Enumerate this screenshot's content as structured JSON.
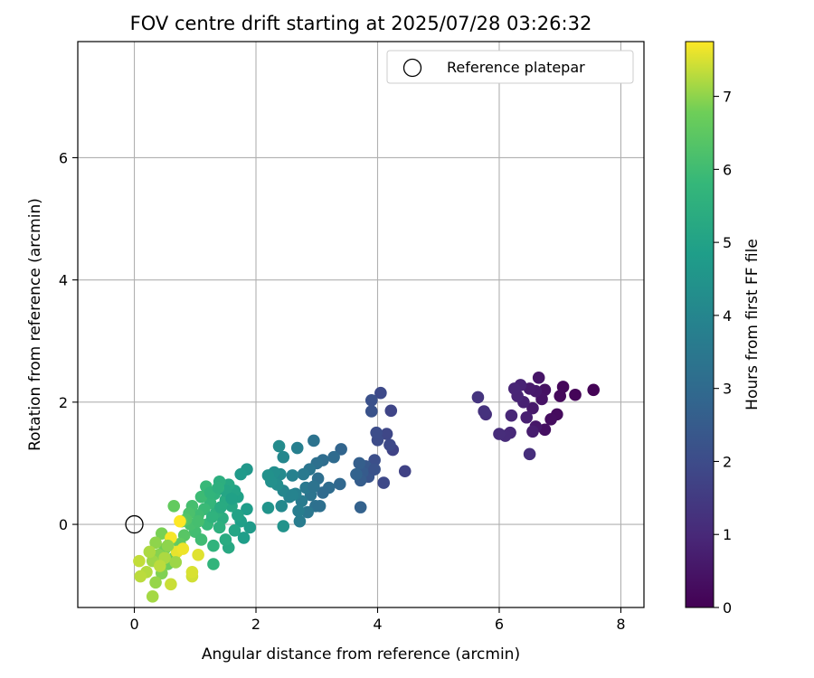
{
  "chart_data": {
    "type": "scatter",
    "title": "FOV centre drift starting at 2025/07/28 03:26:32",
    "xlabel": "Angular distance from reference (arcmin)",
    "ylabel": "Rotation from reference (arcmin)",
    "xlim": [
      -0.93,
      8.38
    ],
    "ylim": [
      -1.36,
      7.9
    ],
    "xticks": [
      0,
      2,
      4,
      6,
      8
    ],
    "yticks": [
      0,
      2,
      4,
      6
    ],
    "grid": true,
    "legend": {
      "placement": "top-right",
      "entries": [
        "Reference platepar"
      ]
    },
    "colorbar": {
      "label": "Hours from first FF file",
      "range": [
        0,
        7.75
      ],
      "ticks": [
        0,
        1,
        2,
        3,
        4,
        5,
        6,
        7
      ],
      "colormap": "viridis"
    },
    "reference_point": {
      "x": 0,
      "y": 0,
      "label": "Reference platepar"
    },
    "points": [
      {
        "x": 7.55,
        "y": 2.2,
        "t": 0.05
      },
      {
        "x": 7.25,
        "y": 2.12,
        "t": 0.1
      },
      {
        "x": 7.05,
        "y": 2.25,
        "t": 0.15
      },
      {
        "x": 7.0,
        "y": 2.1,
        "t": 0.2
      },
      {
        "x": 6.95,
        "y": 1.8,
        "t": 0.25
      },
      {
        "x": 6.85,
        "y": 1.72,
        "t": 0.3
      },
      {
        "x": 6.75,
        "y": 1.55,
        "t": 0.35
      },
      {
        "x": 6.75,
        "y": 2.2,
        "t": 0.4
      },
      {
        "x": 6.7,
        "y": 2.05,
        "t": 0.45
      },
      {
        "x": 6.65,
        "y": 2.4,
        "t": 0.5
      },
      {
        "x": 6.6,
        "y": 1.6,
        "t": 0.55
      },
      {
        "x": 6.6,
        "y": 2.18,
        "t": 0.6
      },
      {
        "x": 6.55,
        "y": 1.9,
        "t": 0.62
      },
      {
        "x": 6.5,
        "y": 2.22,
        "t": 0.65
      },
      {
        "x": 6.55,
        "y": 1.52,
        "t": 0.7
      },
      {
        "x": 6.45,
        "y": 1.75,
        "t": 0.75
      },
      {
        "x": 6.4,
        "y": 2.0,
        "t": 0.8
      },
      {
        "x": 6.35,
        "y": 2.28,
        "t": 0.85
      },
      {
        "x": 6.3,
        "y": 2.1,
        "t": 0.9
      },
      {
        "x": 6.25,
        "y": 2.22,
        "t": 0.92
      },
      {
        "x": 6.2,
        "y": 1.78,
        "t": 0.95
      },
      {
        "x": 6.18,
        "y": 1.5,
        "t": 1.0
      },
      {
        "x": 6.1,
        "y": 1.45,
        "t": 1.05
      },
      {
        "x": 6.0,
        "y": 1.48,
        "t": 1.1
      },
      {
        "x": 6.5,
        "y": 1.15,
        "t": 1.15
      },
      {
        "x": 5.78,
        "y": 1.8,
        "t": 1.2
      },
      {
        "x": 5.75,
        "y": 1.85,
        "t": 1.25
      },
      {
        "x": 5.65,
        "y": 2.08,
        "t": 1.3
      },
      {
        "x": 4.45,
        "y": 0.87,
        "t": 1.7
      },
      {
        "x": 4.25,
        "y": 1.22,
        "t": 1.75
      },
      {
        "x": 4.22,
        "y": 1.86,
        "t": 1.8
      },
      {
        "x": 4.15,
        "y": 1.48,
        "t": 1.85
      },
      {
        "x": 4.1,
        "y": 0.68,
        "t": 1.9
      },
      {
        "x": 4.05,
        "y": 2.15,
        "t": 1.95
      },
      {
        "x": 4.0,
        "y": 1.38,
        "t": 2.0
      },
      {
        "x": 3.98,
        "y": 1.5,
        "t": 2.05
      },
      {
        "x": 3.95,
        "y": 1.05,
        "t": 2.1
      },
      {
        "x": 3.9,
        "y": 2.03,
        "t": 2.15
      },
      {
        "x": 3.9,
        "y": 1.85,
        "t": 2.2
      },
      {
        "x": 3.85,
        "y": 0.78,
        "t": 2.3
      },
      {
        "x": 3.8,
        "y": 0.95,
        "t": 2.4
      },
      {
        "x": 3.75,
        "y": 0.85,
        "t": 2.5
      },
      {
        "x": 3.72,
        "y": 0.72,
        "t": 2.55
      },
      {
        "x": 3.7,
        "y": 1.0,
        "t": 2.6
      },
      {
        "x": 3.72,
        "y": 0.28,
        "t": 2.7
      },
      {
        "x": 3.65,
        "y": 0.82,
        "t": 2.75
      },
      {
        "x": 4.2,
        "y": 1.3,
        "t": 1.9
      },
      {
        "x": 3.95,
        "y": 0.9,
        "t": 2.2
      },
      {
        "x": 3.4,
        "y": 1.23,
        "t": 2.8
      },
      {
        "x": 3.38,
        "y": 0.66,
        "t": 2.9
      },
      {
        "x": 3.28,
        "y": 1.1,
        "t": 3.0
      },
      {
        "x": 3.2,
        "y": 0.6,
        "t": 3.05
      },
      {
        "x": 3.1,
        "y": 1.05,
        "t": 3.1
      },
      {
        "x": 3.02,
        "y": 0.75,
        "t": 3.15
      },
      {
        "x": 3.0,
        "y": 1.0,
        "t": 3.2
      },
      {
        "x": 2.98,
        "y": 0.3,
        "t": 3.25
      },
      {
        "x": 2.95,
        "y": 1.37,
        "t": 3.3
      },
      {
        "x": 2.9,
        "y": 0.48,
        "t": 3.35
      },
      {
        "x": 2.88,
        "y": 0.9,
        "t": 3.4
      },
      {
        "x": 2.85,
        "y": 0.2,
        "t": 3.45
      },
      {
        "x": 2.82,
        "y": 0.6,
        "t": 3.5
      },
      {
        "x": 2.78,
        "y": 0.82,
        "t": 3.55
      },
      {
        "x": 2.75,
        "y": 0.38,
        "t": 3.6
      },
      {
        "x": 2.72,
        "y": 0.05,
        "t": 3.65
      },
      {
        "x": 2.7,
        "y": 0.22,
        "t": 3.7
      },
      {
        "x": 2.68,
        "y": 1.25,
        "t": 3.75
      },
      {
        "x": 2.65,
        "y": 0.5,
        "t": 3.8
      },
      {
        "x": 2.6,
        "y": 0.8,
        "t": 3.85
      },
      {
        "x": 2.55,
        "y": 0.45,
        "t": 3.9
      },
      {
        "x": 2.45,
        "y": 0.55,
        "t": 4.0
      },
      {
        "x": 2.45,
        "y": 1.1,
        "t": 4.05
      },
      {
        "x": 2.42,
        "y": 0.3,
        "t": 4.1
      },
      {
        "x": 2.4,
        "y": 0.82,
        "t": 4.15
      },
      {
        "x": 2.38,
        "y": 1.28,
        "t": 4.2
      },
      {
        "x": 2.35,
        "y": 0.65,
        "t": 4.25
      },
      {
        "x": 2.3,
        "y": 0.85,
        "t": 4.3
      },
      {
        "x": 2.25,
        "y": 0.7,
        "t": 4.35
      },
      {
        "x": 2.2,
        "y": 0.8,
        "t": 4.4
      },
      {
        "x": 2.45,
        "y": -0.03,
        "t": 4.45
      },
      {
        "x": 2.2,
        "y": 0.27,
        "t": 4.5
      },
      {
        "x": 3.1,
        "y": 0.52,
        "t": 3.0
      },
      {
        "x": 2.95,
        "y": 0.62,
        "t": 3.3
      },
      {
        "x": 3.05,
        "y": 0.3,
        "t": 3.2
      },
      {
        "x": 2.6,
        "y": 0.48,
        "t": 3.9
      },
      {
        "x": 1.85,
        "y": 0.9,
        "t": 4.6
      },
      {
        "x": 1.75,
        "y": 0.82,
        "t": 4.7
      },
      {
        "x": 1.9,
        "y": -0.05,
        "t": 4.75
      },
      {
        "x": 1.85,
        "y": 0.25,
        "t": 4.8
      },
      {
        "x": 1.8,
        "y": -0.22,
        "t": 4.85
      },
      {
        "x": 1.75,
        "y": 0.05,
        "t": 4.9
      },
      {
        "x": 1.7,
        "y": 0.45,
        "t": 4.95
      },
      {
        "x": 1.7,
        "y": 0.15,
        "t": 5.0
      },
      {
        "x": 1.65,
        "y": 0.55,
        "t": 5.05
      },
      {
        "x": 1.65,
        "y": -0.1,
        "t": 5.1
      },
      {
        "x": 1.6,
        "y": 0.3,
        "t": 5.15
      },
      {
        "x": 1.55,
        "y": 0.65,
        "t": 5.2
      },
      {
        "x": 1.55,
        "y": -0.38,
        "t": 5.25
      },
      {
        "x": 1.5,
        "y": 0.4,
        "t": 5.3
      },
      {
        "x": 1.5,
        "y": -0.25,
        "t": 5.35
      },
      {
        "x": 1.45,
        "y": 0.1,
        "t": 5.4
      },
      {
        "x": 1.4,
        "y": 0.7,
        "t": 5.45
      },
      {
        "x": 1.4,
        "y": -0.05,
        "t": 5.5
      },
      {
        "x": 1.35,
        "y": 0.2,
        "t": 5.55
      },
      {
        "x": 1.32,
        "y": 0.5,
        "t": 5.6
      },
      {
        "x": 1.3,
        "y": -0.35,
        "t": 5.65
      },
      {
        "x": 1.3,
        "y": -0.65,
        "t": 5.7
      },
      {
        "x": 1.25,
        "y": 0.35,
        "t": 5.75
      },
      {
        "x": 1.2,
        "y": 0.0,
        "t": 5.8
      },
      {
        "x": 1.18,
        "y": 0.62,
        "t": 5.85
      },
      {
        "x": 1.15,
        "y": 0.25,
        "t": 5.9
      },
      {
        "x": 1.1,
        "y": 0.45,
        "t": 5.95
      },
      {
        "x": 1.05,
        "y": 0.15,
        "t": 6.0
      },
      {
        "x": 1.0,
        "y": -0.12,
        "t": 6.05
      },
      {
        "x": 0.95,
        "y": 0.3,
        "t": 6.1
      },
      {
        "x": 0.92,
        "y": 0.0,
        "t": 6.15
      },
      {
        "x": 0.9,
        "y": 0.18,
        "t": 6.2
      },
      {
        "x": 1.5,
        "y": 0.55,
        "t": 5.1
      },
      {
        "x": 1.6,
        "y": 0.42,
        "t": 4.95
      },
      {
        "x": 1.42,
        "y": 0.28,
        "t": 5.3
      },
      {
        "x": 1.28,
        "y": 0.12,
        "t": 5.6
      },
      {
        "x": 1.1,
        "y": -0.25,
        "t": 6.0
      },
      {
        "x": 1.25,
        "y": 0.52,
        "t": 5.7
      },
      {
        "x": 1.38,
        "y": 0.6,
        "t": 5.5
      },
      {
        "x": 1.05,
        "y": 0.05,
        "t": 6.1
      },
      {
        "x": 0.85,
        "y": 0.08,
        "t": 6.3
      },
      {
        "x": 0.82,
        "y": -0.18,
        "t": 6.4
      },
      {
        "x": 0.78,
        "y": 0.05,
        "t": 6.5
      },
      {
        "x": 0.75,
        "y": -0.32,
        "t": 6.55
      },
      {
        "x": 0.65,
        "y": 0.3,
        "t": 6.6
      },
      {
        "x": 0.65,
        "y": -0.55,
        "t": 6.65
      },
      {
        "x": 0.6,
        "y": -0.25,
        "t": 6.7
      },
      {
        "x": 0.55,
        "y": -0.65,
        "t": 6.75
      },
      {
        "x": 0.5,
        "y": -0.4,
        "t": 6.8
      },
      {
        "x": 0.45,
        "y": -0.15,
        "t": 6.85
      },
      {
        "x": 0.45,
        "y": -0.8,
        "t": 6.9
      },
      {
        "x": 0.4,
        "y": -0.5,
        "t": 6.95
      },
      {
        "x": 0.35,
        "y": -0.3,
        "t": 7.0
      },
      {
        "x": 0.35,
        "y": -0.95,
        "t": 7.05
      },
      {
        "x": 0.3,
        "y": -0.6,
        "t": 7.1
      },
      {
        "x": 0.3,
        "y": -1.18,
        "t": 7.15
      },
      {
        "x": 0.25,
        "y": -0.45,
        "t": 7.2
      },
      {
        "x": 0.2,
        "y": -0.78,
        "t": 7.25
      },
      {
        "x": 0.1,
        "y": -0.85,
        "t": 7.3
      },
      {
        "x": 0.08,
        "y": -0.6,
        "t": 7.35
      },
      {
        "x": 0.6,
        "y": -0.98,
        "t": 7.4
      },
      {
        "x": 0.95,
        "y": -0.85,
        "t": 7.45
      },
      {
        "x": 0.95,
        "y": -0.78,
        "t": 7.5
      },
      {
        "x": 1.05,
        "y": -0.5,
        "t": 7.55
      },
      {
        "x": 0.7,
        "y": -0.45,
        "t": 7.6
      },
      {
        "x": 0.8,
        "y": -0.4,
        "t": 7.65
      },
      {
        "x": 0.6,
        "y": -0.22,
        "t": 7.7
      },
      {
        "x": 0.75,
        "y": 0.05,
        "t": 7.75
      },
      {
        "x": 0.5,
        "y": -0.55,
        "t": 7.2
      },
      {
        "x": 0.42,
        "y": -0.68,
        "t": 7.3
      },
      {
        "x": 0.55,
        "y": -0.35,
        "t": 7.0
      },
      {
        "x": 0.68,
        "y": -0.62,
        "t": 7.1
      }
    ]
  }
}
